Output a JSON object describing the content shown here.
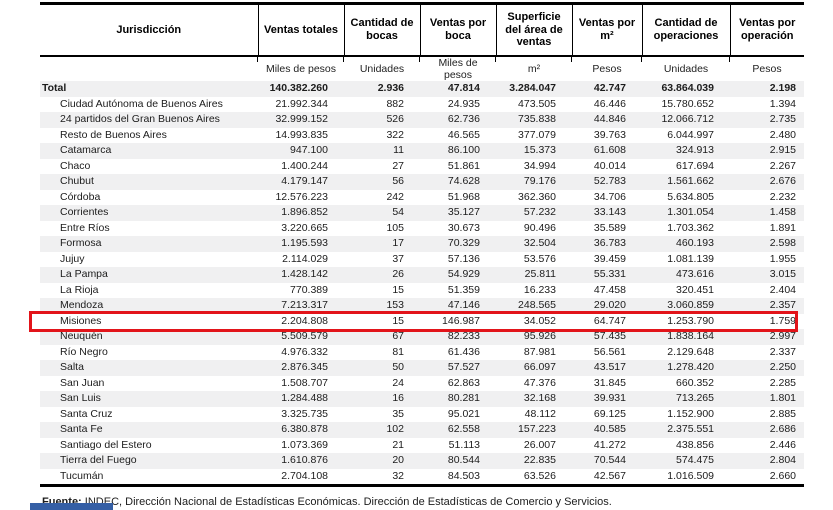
{
  "table": {
    "columns": [
      {
        "title": "Jurisdicción",
        "unit": ""
      },
      {
        "title": "Ventas totales",
        "unit": "Miles de pesos"
      },
      {
        "title": "Cantidad de bocas",
        "unit": "Unidades"
      },
      {
        "title": "Ventas por boca",
        "unit": "Miles de pesos"
      },
      {
        "title": "Superficie del área de ventas",
        "unit": "m²"
      },
      {
        "title": "Ventas por m²",
        "unit": "Pesos"
      },
      {
        "title": "Cantidad de operaciones",
        "unit": "Unidades"
      },
      {
        "title": "Ventas por operación",
        "unit": "Pesos"
      }
    ],
    "rows": [
      {
        "jurisdiccion": "Total",
        "bold": true,
        "values": [
          "140.382.260",
          "2.936",
          "47.814",
          "3.284.047",
          "42.747",
          "63.864.039",
          "2.198"
        ]
      },
      {
        "jurisdiccion": "Ciudad Autónoma de Buenos Aires",
        "values": [
          "21.992.344",
          "882",
          "24.935",
          "473.505",
          "46.446",
          "15.780.652",
          "1.394"
        ]
      },
      {
        "jurisdiccion": "24 partidos del Gran Buenos Aires",
        "values": [
          "32.999.152",
          "526",
          "62.736",
          "735.838",
          "44.846",
          "12.066.712",
          "2.735"
        ]
      },
      {
        "jurisdiccion": "Resto de Buenos Aires",
        "values": [
          "14.993.835",
          "322",
          "46.565",
          "377.079",
          "39.763",
          "6.044.997",
          "2.480"
        ]
      },
      {
        "jurisdiccion": "Catamarca",
        "values": [
          "947.100",
          "11",
          "86.100",
          "15.373",
          "61.608",
          "324.913",
          "2.915"
        ]
      },
      {
        "jurisdiccion": "Chaco",
        "values": [
          "1.400.244",
          "27",
          "51.861",
          "34.994",
          "40.014",
          "617.694",
          "2.267"
        ]
      },
      {
        "jurisdiccion": "Chubut",
        "values": [
          "4.179.147",
          "56",
          "74.628",
          "79.176",
          "52.783",
          "1.561.662",
          "2.676"
        ]
      },
      {
        "jurisdiccion": "Córdoba",
        "values": [
          "12.576.223",
          "242",
          "51.968",
          "362.360",
          "34.706",
          "5.634.805",
          "2.232"
        ]
      },
      {
        "jurisdiccion": "Corrientes",
        "values": [
          "1.896.852",
          "54",
          "35.127",
          "57.232",
          "33.143",
          "1.301.054",
          "1.458"
        ]
      },
      {
        "jurisdiccion": "Entre Ríos",
        "values": [
          "3.220.665",
          "105",
          "30.673",
          "90.496",
          "35.589",
          "1.703.362",
          "1.891"
        ]
      },
      {
        "jurisdiccion": "Formosa",
        "values": [
          "1.195.593",
          "17",
          "70.329",
          "32.504",
          "36.783",
          "460.193",
          "2.598"
        ]
      },
      {
        "jurisdiccion": "Jujuy",
        "values": [
          "2.114.029",
          "37",
          "57.136",
          "53.576",
          "39.459",
          "1.081.139",
          "1.955"
        ]
      },
      {
        "jurisdiccion": "La Pampa",
        "values": [
          "1.428.142",
          "26",
          "54.929",
          "25.811",
          "55.331",
          "473.616",
          "3.015"
        ]
      },
      {
        "jurisdiccion": "La Rioja",
        "values": [
          "770.389",
          "15",
          "51.359",
          "16.233",
          "47.458",
          "320.451",
          "2.404"
        ]
      },
      {
        "jurisdiccion": "Mendoza",
        "values": [
          "7.213.317",
          "153",
          "47.146",
          "248.565",
          "29.020",
          "3.060.859",
          "2.357"
        ]
      },
      {
        "jurisdiccion": "Misiones",
        "highlighted": true,
        "values": [
          "2.204.808",
          "15",
          "146.987",
          "34.052",
          "64.747",
          "1.253.790",
          "1.759"
        ]
      },
      {
        "jurisdiccion": "Neuquén",
        "values": [
          "5.509.579",
          "67",
          "82.233",
          "95.926",
          "57.435",
          "1.838.164",
          "2.997"
        ]
      },
      {
        "jurisdiccion": "Río Negro",
        "values": [
          "4.976.332",
          "81",
          "61.436",
          "87.981",
          "56.561",
          "2.129.648",
          "2.337"
        ]
      },
      {
        "jurisdiccion": "Salta",
        "values": [
          "2.876.345",
          "50",
          "57.527",
          "66.097",
          "43.517",
          "1.278.420",
          "2.250"
        ]
      },
      {
        "jurisdiccion": "San Juan",
        "values": [
          "1.508.707",
          "24",
          "62.863",
          "47.376",
          "31.845",
          "660.352",
          "2.285"
        ]
      },
      {
        "jurisdiccion": "San Luis",
        "values": [
          "1.284.488",
          "16",
          "80.281",
          "32.168",
          "39.931",
          "713.265",
          "1.801"
        ]
      },
      {
        "jurisdiccion": "Santa Cruz",
        "values": [
          "3.325.735",
          "35",
          "95.021",
          "48.112",
          "69.125",
          "1.152.900",
          "2.885"
        ]
      },
      {
        "jurisdiccion": "Santa Fe",
        "values": [
          "6.380.878",
          "102",
          "62.558",
          "157.223",
          "40.585",
          "2.375.551",
          "2.686"
        ]
      },
      {
        "jurisdiccion": "Santiago del Estero",
        "values": [
          "1.073.369",
          "21",
          "51.113",
          "26.007",
          "41.272",
          "438.856",
          "2.446"
        ]
      },
      {
        "jurisdiccion": "Tierra del Fuego",
        "values": [
          "1.610.876",
          "20",
          "80.544",
          "22.835",
          "70.544",
          "574.475",
          "2.804"
        ]
      },
      {
        "jurisdiccion": "Tucumán",
        "values": [
          "2.704.108",
          "32",
          "84.503",
          "63.526",
          "42.567",
          "1.016.509",
          "2.660"
        ]
      }
    ]
  },
  "footer": {
    "source_label": "Fuente:",
    "source_text": "INDEC, Dirección Nacional de Estadísticas Económicas. Dirección de Estadísticas de Comercio y Servicios."
  },
  "colors": {
    "highlight_border": "#e2141a",
    "row_shade": "#f0f0f1",
    "accent_bar": "#355fa5"
  }
}
